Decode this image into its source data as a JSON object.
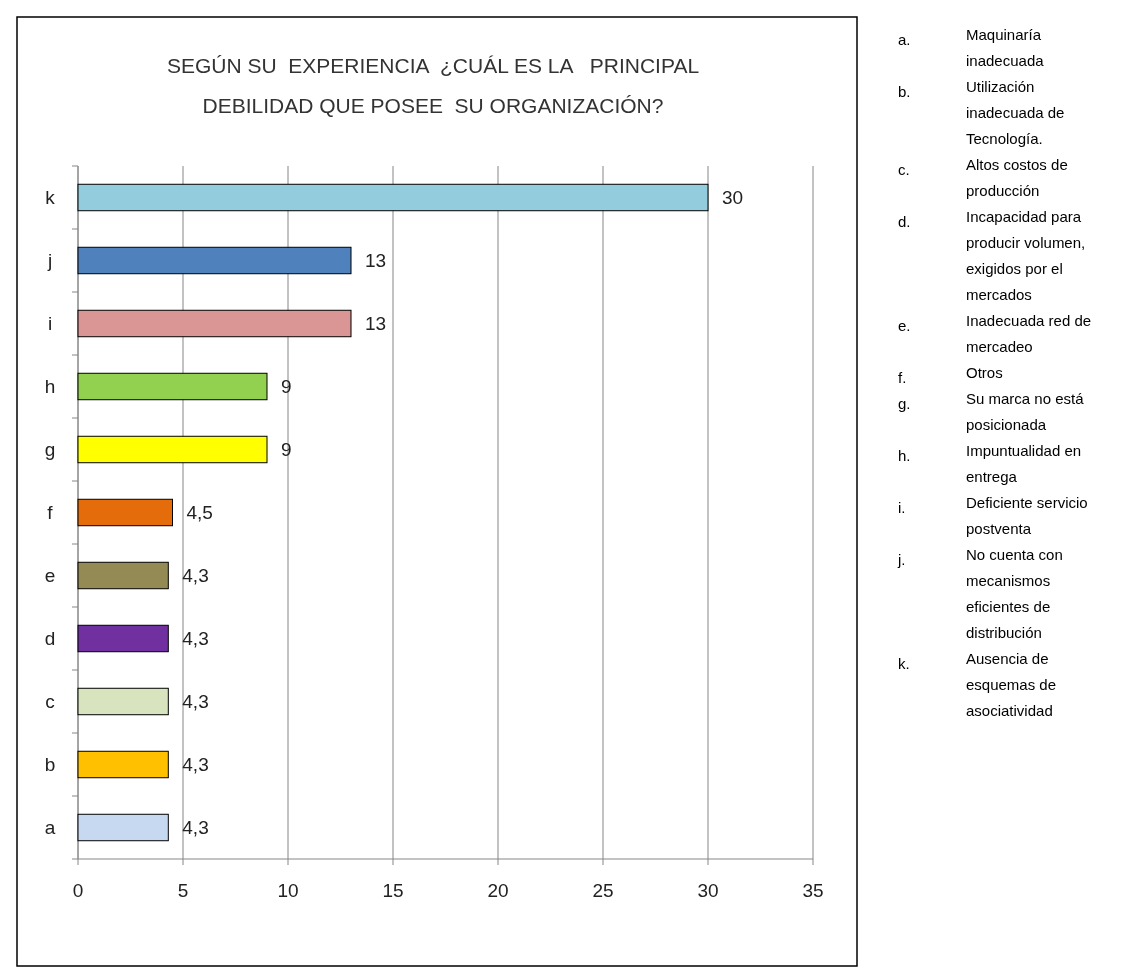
{
  "chart_data": {
    "type": "bar",
    "orientation": "horizontal",
    "title": "SEGÚN SU  EXPERIENCIA  ¿CUÁL ES LA   PRINCIPAL\nDEBILIDAD QUE POSEE  SU ORGANIZACIÓN?",
    "categories": [
      "k",
      "j",
      "i",
      "h",
      "g",
      "f",
      "e",
      "d",
      "c",
      "b",
      "a"
    ],
    "values": [
      30,
      13,
      13,
      9,
      9,
      4.5,
      4.3,
      4.3,
      4.3,
      4.3,
      4.3
    ],
    "value_labels": [
      "30",
      "13",
      "13",
      "9",
      "9",
      "4,5",
      "4,3",
      "4,3",
      "4,3",
      "4,3",
      "4,3"
    ],
    "colors": [
      "#93cddd",
      "#4f81bd",
      "#d99694",
      "#92d050",
      "#ffff00",
      "#e46c0a",
      "#948a54",
      "#7030a0",
      "#d7e4bd",
      "#ffc000",
      "#c6d9f1"
    ],
    "xlim": [
      0,
      35
    ],
    "xticks": [
      0,
      5,
      10,
      15,
      20,
      25,
      30,
      35
    ],
    "grid": "x",
    "annotations": [
      "a. Maquinaría inadecuada",
      "b. Utilización inadecuada de Tecnología.",
      "c. Altos costos de producción",
      "d. Incapacidad para producir volumen, exigidos por el mercados",
      "e. Inadecuada red de mercadeo",
      "f. Otros",
      "g. Su marca no está posicionada",
      "h. Impuntualidad en entrega",
      "i. Deficiente servicio postventa",
      "j. No cuenta con mecanismos eficientes de distribución",
      "k. Ausencia de esquemas de asociatividad"
    ]
  }
}
